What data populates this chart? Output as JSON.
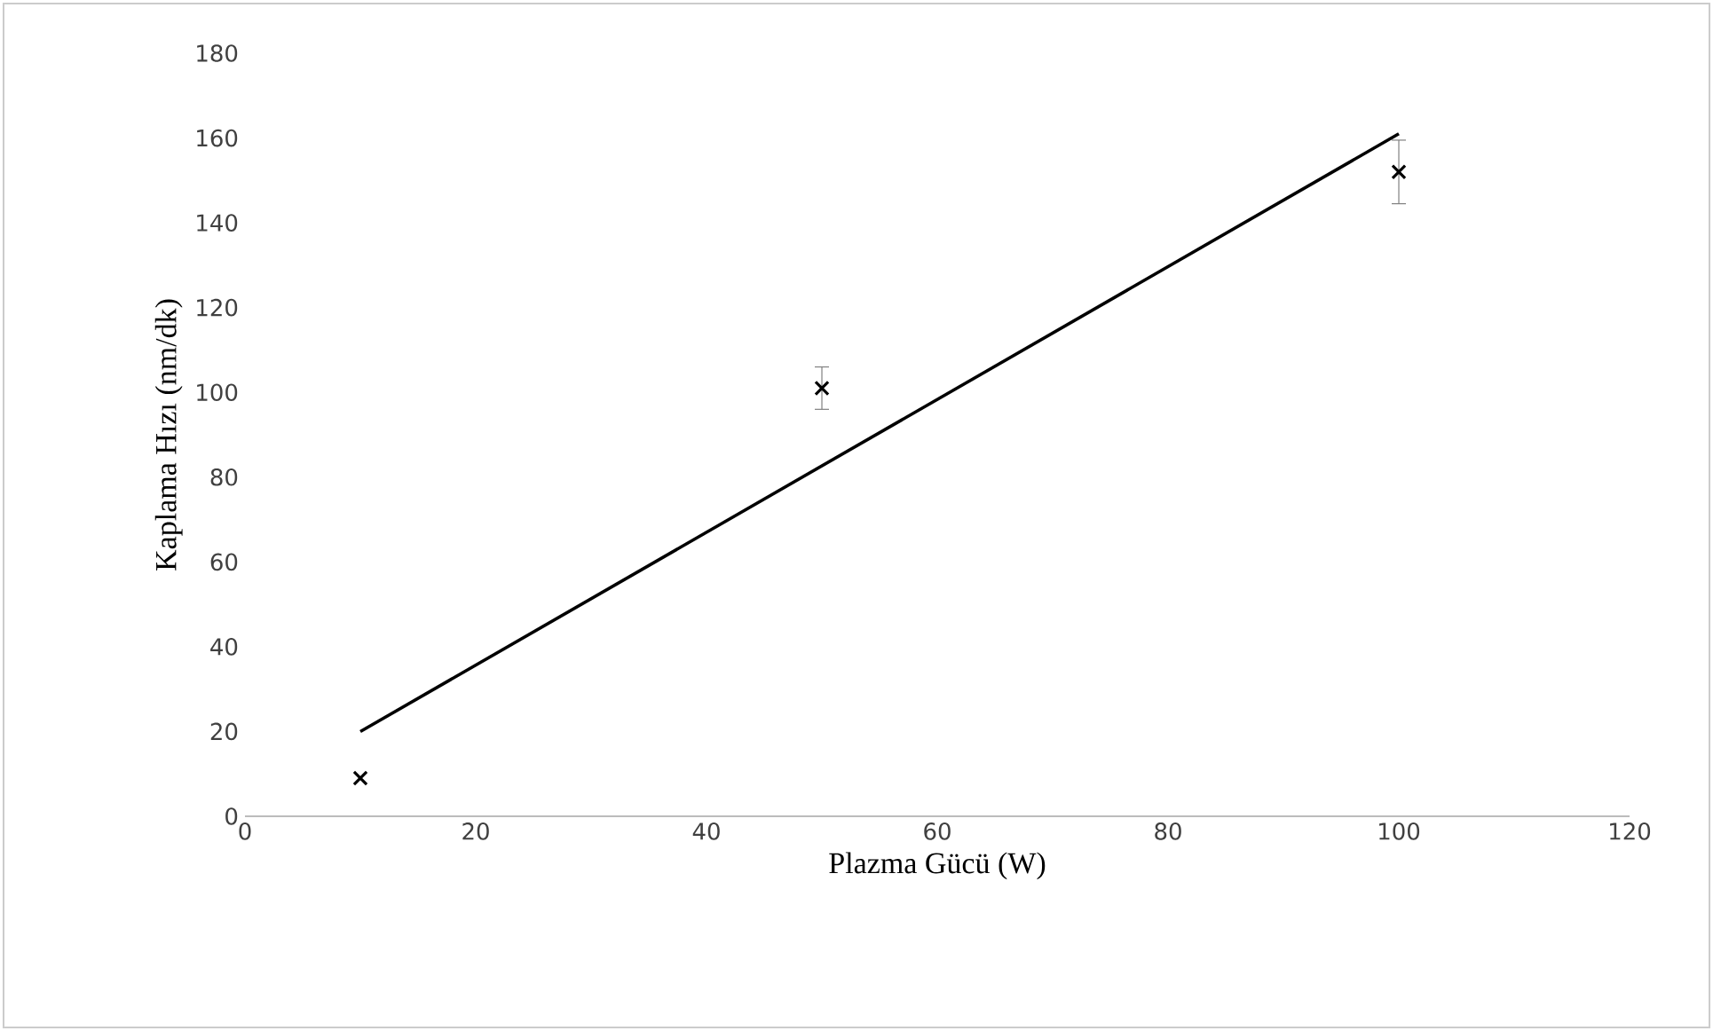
{
  "chart_data": {
    "type": "scatter",
    "xlabel": "Plazma Gücü (W)",
    "ylabel": "Kaplama Hızı (nm/dk)",
    "xlim": [
      0,
      120
    ],
    "xticks": [
      0,
      20,
      40,
      60,
      80,
      100,
      120
    ],
    "ylim": [
      0,
      180
    ],
    "yticks": [
      0,
      20,
      40,
      60,
      80,
      100,
      120,
      140,
      160,
      180
    ],
    "grid": false,
    "series": [
      {
        "color": "#000000",
        "marker": "cross",
        "x": [
          10,
          50,
          100
        ],
        "values": [
          9,
          101,
          152
        ],
        "errors": [
          null,
          5,
          7.5
        ]
      },
      {
        "type": "line",
        "color": "#000000",
        "marker": "none",
        "line_style": "solid",
        "x": [
          10,
          100
        ],
        "values": [
          20,
          161
        ]
      }
    ]
  }
}
